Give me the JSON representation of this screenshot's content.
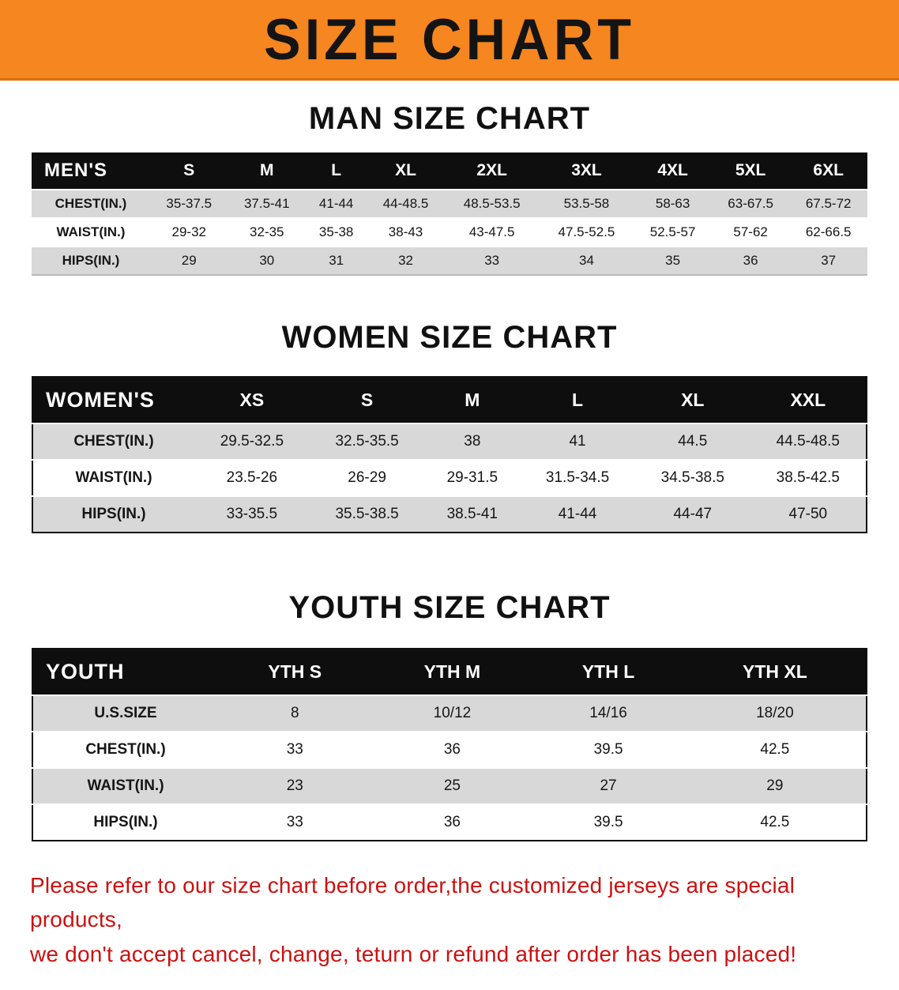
{
  "banner": {
    "title": "SIZE CHART"
  },
  "colors": {
    "banner_bg": "#f6861f",
    "banner_text": "#141414",
    "header_bg": "#0e0e0e",
    "header_text": "#ffffff",
    "stripe": "#d8d8d8",
    "row_white": "#ffffff",
    "heading_text": "#111111",
    "footer_text": "#cc1111"
  },
  "sections": {
    "men": {
      "heading": "MAN SIZE CHART",
      "table": {
        "corner_label": "MEN'S",
        "columns": [
          "S",
          "M",
          "L",
          "XL",
          "2XL",
          "3XL",
          "4XL",
          "5XL",
          "6XL"
        ],
        "rows": [
          {
            "label": "CHEST(IN.)",
            "values": [
              "35-37.5",
              "37.5-41",
              "41-44",
              "44-48.5",
              "48.5-53.5",
              "53.5-58",
              "58-63",
              "63-67.5",
              "67.5-72"
            ]
          },
          {
            "label": "WAIST(IN.)",
            "values": [
              "29-32",
              "32-35",
              "35-38",
              "38-43",
              "43-47.5",
              "47.5-52.5",
              "52.5-57",
              "57-62",
              "62-66.5"
            ]
          },
          {
            "label": "HIPS(IN.)",
            "values": [
              "29",
              "30",
              "31",
              "32",
              "33",
              "34",
              "35",
              "36",
              "37"
            ]
          }
        ]
      }
    },
    "women": {
      "heading": "WOMEN SIZE CHART",
      "table": {
        "corner_label": "WOMEN'S",
        "columns": [
          "XS",
          "S",
          "M",
          "L",
          "XL",
          "XXL"
        ],
        "rows": [
          {
            "label": "CHEST(IN.)",
            "values": [
              "29.5-32.5",
              "32.5-35.5",
              "38",
              "41",
              "44.5",
              "44.5-48.5"
            ]
          },
          {
            "label": "WAIST(IN.)",
            "values": [
              "23.5-26",
              "26-29",
              "29-31.5",
              "31.5-34.5",
              "34.5-38.5",
              "38.5-42.5"
            ]
          },
          {
            "label": "HIPS(IN.)",
            "values": [
              "33-35.5",
              "35.5-38.5",
              "38.5-41",
              "41-44",
              "44-47",
              "47-50"
            ]
          }
        ]
      }
    },
    "youth": {
      "heading": "YOUTH SIZE CHART",
      "table": {
        "corner_label": "YOUTH",
        "columns": [
          "YTH S",
          "YTH M",
          "YTH L",
          "YTH XL"
        ],
        "rows": [
          {
            "label": "U.S.SIZE",
            "values": [
              "8",
              "10/12",
              "14/16",
              "18/20"
            ]
          },
          {
            "label": "CHEST(IN.)",
            "values": [
              "33",
              "36",
              "39.5",
              "42.5"
            ]
          },
          {
            "label": "WAIST(IN.)",
            "values": [
              "23",
              "25",
              "27",
              "29"
            ]
          },
          {
            "label": "HIPS(IN.)",
            "values": [
              "33",
              "36",
              "39.5",
              "42.5"
            ]
          }
        ]
      }
    }
  },
  "footer": {
    "line1": "Please refer to our size chart before order,the customized jerseys are special products,",
    "line2": "we don't accept cancel, change, teturn or refund after order has been placed!"
  }
}
